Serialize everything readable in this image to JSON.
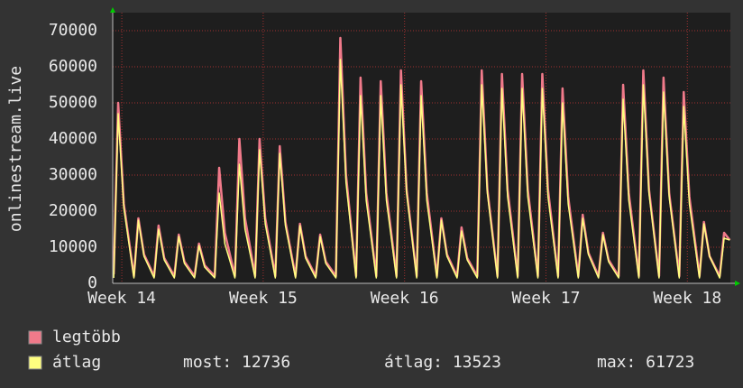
{
  "chart_data": {
    "type": "line",
    "y_label": "onlinestream.live",
    "x": [
      0.05,
      0.27,
      0.55,
      1.05,
      1.27,
      1.55,
      2.05,
      2.27,
      2.55,
      3.05,
      3.27,
      3.55,
      4.05,
      4.27,
      4.55,
      5.05,
      5.27,
      5.55,
      6.05,
      6.27,
      6.55,
      7.05,
      7.27,
      7.55,
      8.05,
      8.27,
      8.55,
      9.05,
      9.27,
      9.55,
      10.05,
      10.27,
      10.55,
      11.05,
      11.27,
      11.55,
      12.05,
      12.27,
      12.55,
      13.05,
      13.27,
      13.55,
      14.05,
      14.27,
      14.55,
      15.05,
      15.27,
      15.55,
      16.05,
      16.27,
      16.55,
      17.05,
      17.27,
      17.55,
      18.05,
      18.27,
      18.55,
      19.05,
      19.27,
      19.55,
      20.05,
      20.27,
      20.55,
      21.05,
      21.27,
      21.55,
      22.05,
      22.27,
      22.55,
      23.05,
      23.27,
      23.55,
      24.05,
      24.27,
      24.55,
      25.05,
      25.27,
      25.55,
      26.05,
      26.27,
      26.55,
      27.05,
      27.27,
      27.55,
      28.05,
      28.27,
      28.55,
      29.05,
      29.27,
      29.55,
      30.05,
      30.27,
      30.55
    ],
    "series": [
      {
        "name": "legtöbb",
        "color": "#f07a8a",
        "values": [
          2500,
          50000,
          22000,
          2000,
          18000,
          8000,
          2000,
          16000,
          7000,
          2000,
          13500,
          6000,
          2000,
          11000,
          5000,
          2000,
          32000,
          14000,
          2000,
          40000,
          18000,
          2000,
          40000,
          18000,
          2000,
          38000,
          17000,
          2000,
          16500,
          7500,
          2000,
          13500,
          6000,
          2000,
          68000,
          30000,
          2000,
          57000,
          25000,
          2000,
          56000,
          25000,
          2000,
          59000,
          26000,
          2000,
          56000,
          25000,
          2000,
          18000,
          8000,
          2000,
          15500,
          7000,
          2000,
          59000,
          26000,
          2000,
          58000,
          26000,
          2000,
          58000,
          26000,
          2000,
          58000,
          26000,
          2000,
          54000,
          24000,
          2000,
          19000,
          8500,
          2000,
          14000,
          6500,
          2000,
          55000,
          25000,
          2000,
          59000,
          26000,
          2000,
          57000,
          25000,
          2000,
          53000,
          24000,
          2000,
          17000,
          7500,
          2000,
          14000,
          12000
        ]
      },
      {
        "name": "átlag",
        "color": "#ffff80",
        "values": [
          1500,
          47000,
          21000,
          1500,
          17500,
          7500,
          1500,
          15000,
          6500,
          1500,
          13000,
          5500,
          1500,
          10500,
          4500,
          1500,
          25000,
          11000,
          1500,
          33000,
          15000,
          1500,
          37000,
          16500,
          1500,
          36000,
          16000,
          1500,
          16000,
          7000,
          1500,
          13000,
          5500,
          1500,
          62000,
          28000,
          1500,
          52000,
          23000,
          1500,
          52000,
          23000,
          1500,
          55000,
          25000,
          1500,
          52000,
          23000,
          1500,
          17500,
          7500,
          1500,
          14500,
          6500,
          1500,
          55000,
          25000,
          1500,
          54000,
          24000,
          1500,
          54000,
          24000,
          1500,
          54000,
          24000,
          1500,
          50000,
          22000,
          1500,
          18000,
          8000,
          1500,
          13500,
          6000,
          1500,
          51000,
          23000,
          1500,
          55000,
          25000,
          1500,
          53000,
          24000,
          1500,
          49000,
          22000,
          1500,
          16500,
          7500,
          1500,
          12500,
          12000
        ]
      }
    ],
    "xlim": [
      0,
      30.58
    ],
    "xticks": [
      {
        "value": 0.45,
        "label": "Week 14"
      },
      {
        "value": 7.45,
        "label": "Week 15"
      },
      {
        "value": 14.45,
        "label": "Week 16"
      },
      {
        "value": 21.45,
        "label": "Week 17"
      },
      {
        "value": 28.45,
        "label": "Week 18"
      }
    ],
    "ylim": [
      0,
      75000
    ],
    "yticks": [
      0,
      10000,
      20000,
      30000,
      40000,
      50000,
      60000,
      70000
    ],
    "grid": true,
    "stats": [
      {
        "label": "most:",
        "value": 12736
      },
      {
        "label": "átlag:",
        "value": 13523
      },
      {
        "label": "max:",
        "value": 61723
      }
    ]
  }
}
